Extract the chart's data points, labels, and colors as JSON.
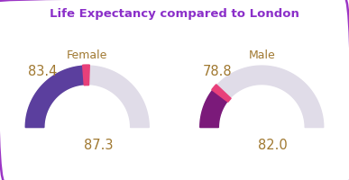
{
  "title": "Life Expectancy compared to London",
  "title_color": "#8B2FC9",
  "border_color": "#9B35C5",
  "background_color": "#ffffff",
  "female_label": "Female",
  "male_label": "Male",
  "female_ward": 83.4,
  "female_london": 87.3,
  "male_ward": 78.8,
  "male_london": 82.0,
  "female_ward_color": "#5B3F9E",
  "female_london_color": "#E0DCE8",
  "male_ward_color": "#7B1A7A",
  "male_london_color": "#E0DCE8",
  "gap_color": "#E8407A",
  "label_color": "#A07830",
  "min_val": 75,
  "max_val": 92,
  "donut_width": 0.3
}
